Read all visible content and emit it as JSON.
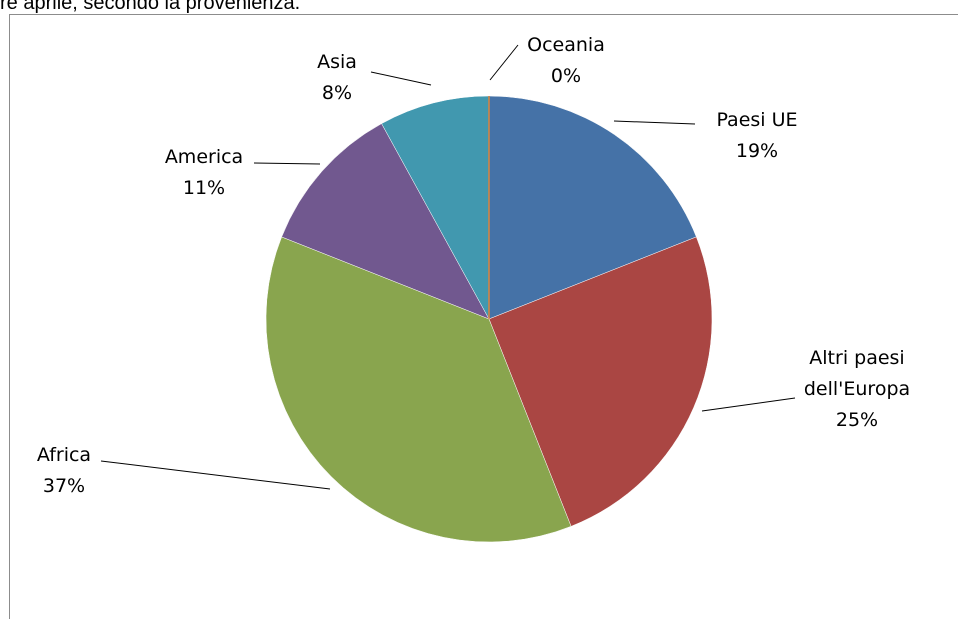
{
  "caption": "re aprile, secondo la provenienza.",
  "chart_data": {
    "type": "pie",
    "title": "",
    "categories": [
      "Paesi UE",
      "Altri paesi dell'Europa",
      "Africa",
      "America",
      "Asia",
      "Oceania"
    ],
    "values": [
      19,
      25,
      37,
      11,
      8,
      0
    ],
    "labels": [
      "19%",
      "25%",
      "37%",
      "11%",
      "8%",
      "0%"
    ],
    "colors": [
      "#4572a7",
      "#aa4643",
      "#89a54e",
      "#71588f",
      "#4198af",
      "#db843d"
    ],
    "start_angle": "12 o'clock, clockwise",
    "legend": "none",
    "data_labels": "outside with leader lines"
  }
}
